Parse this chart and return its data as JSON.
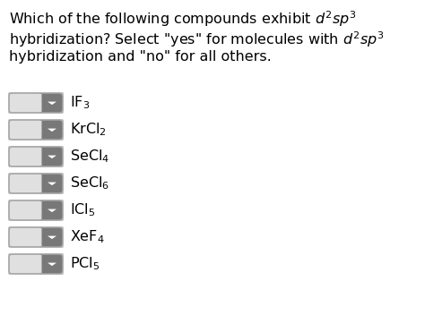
{
  "compounds": [
    "IF$_3$",
    "KrCl$_2$",
    "SeCl$_4$",
    "SeCl$_6$",
    "ICl$_5$",
    "XeF$_4$",
    "PCl$_5$"
  ],
  "background_color": "#ffffff",
  "dropdown_bg_left": "#e0e0e0",
  "dropdown_bg_right": "#787878",
  "dropdown_border": "#aaaaaa",
  "arrow_color": "#ffffff",
  "text_color": "#000000",
  "compound_fontsize": 11.5,
  "title_fontsize": 11.5,
  "fig_width": 4.74,
  "fig_height": 3.52,
  "dpi": 100
}
